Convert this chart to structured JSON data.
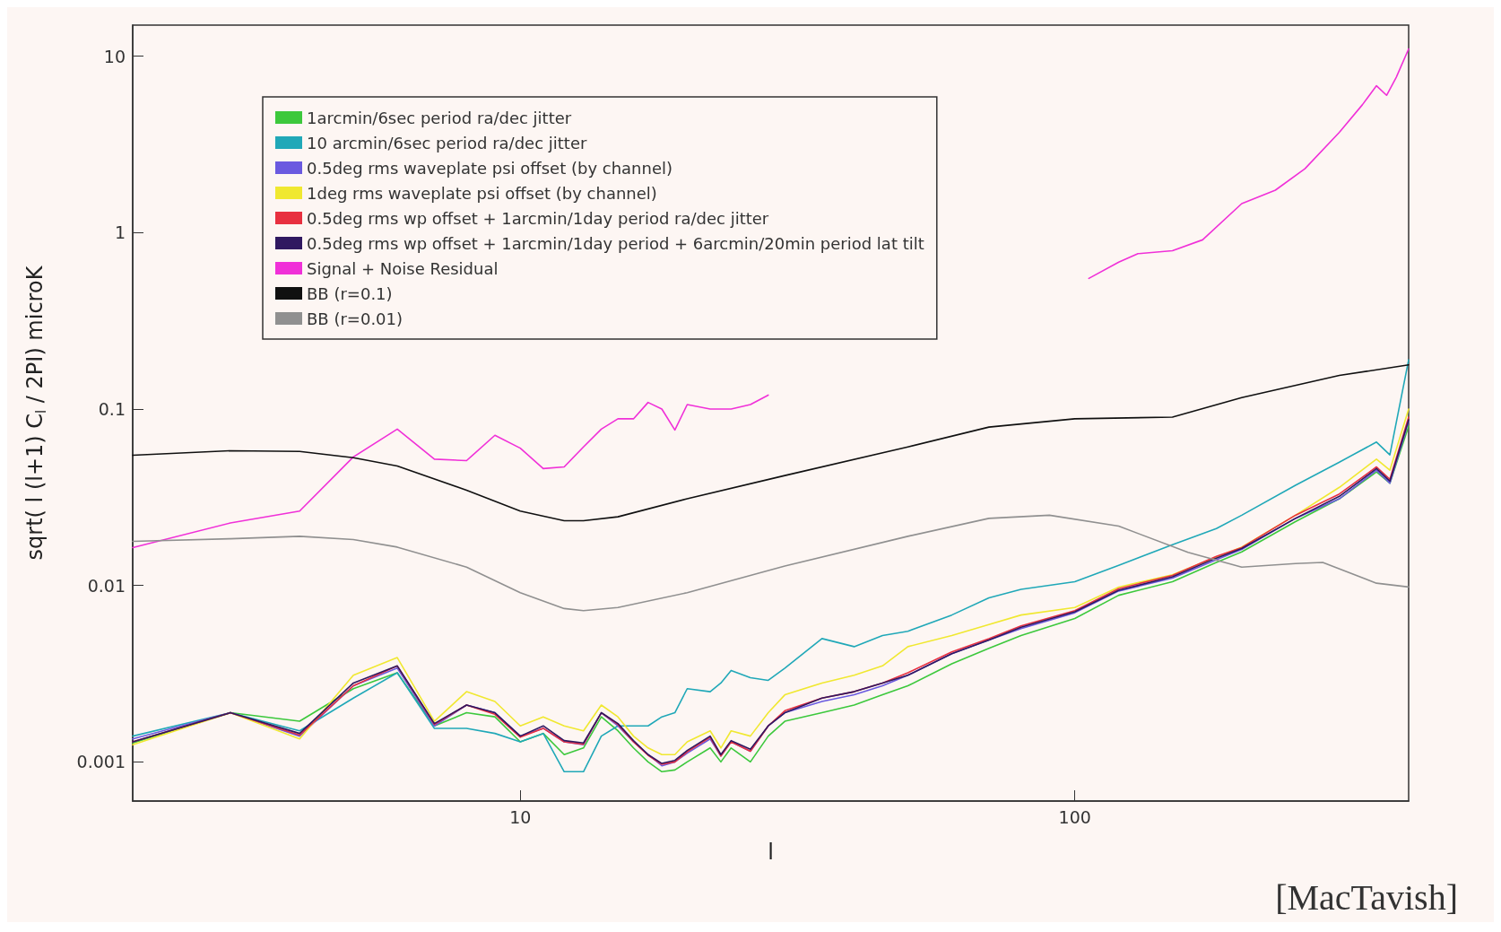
{
  "chart_data": {
    "type": "line",
    "xlabel": "l",
    "ylabel": "sqrt( l (l+1) C$_{l}$ / 2PI) microK",
    "annotations": [
      "[MacTavish]"
    ],
    "log": "xy",
    "xlim": [
      2,
      400
    ],
    "xticks": [
      10,
      100
    ],
    "ylim": [
      0.0006,
      15
    ],
    "yticks": [
      0.001,
      0.01,
      0.1,
      1,
      10
    ],
    "grid": false,
    "legend": "top left",
    "marker": "none",
    "line_style": "solid",
    "series": [
      {
        "name": "1arcmin/6sec period ra/dec jitter",
        "color": "#3cc83c",
        "x": [
          2,
          3,
          4,
          5,
          6,
          7,
          8,
          9,
          10,
          11,
          12,
          13,
          14,
          15,
          16,
          17,
          18,
          19,
          20,
          22,
          23,
          24,
          26,
          28,
          30,
          35,
          40,
          45,
          50,
          60,
          70,
          80,
          100,
          120,
          150,
          180,
          200,
          250,
          300,
          350,
          370,
          400
        ],
        "values": [
          0.00128,
          0.0019,
          0.0017,
          0.0026,
          0.0032,
          0.0016,
          0.0019,
          0.0018,
          0.0013,
          0.00145,
          0.0011,
          0.0012,
          0.0018,
          0.0015,
          0.0012,
          0.001,
          0.00088,
          0.0009,
          0.001,
          0.0012,
          0.001,
          0.0012,
          0.001,
          0.0014,
          0.0017,
          0.0019,
          0.0021,
          0.0024,
          0.0027,
          0.0036,
          0.0044,
          0.0052,
          0.0065,
          0.0088,
          0.0105,
          0.0135,
          0.0155,
          0.023,
          0.031,
          0.044,
          0.038,
          0.08
        ]
      },
      {
        "name": "10 arcmin/6sec period ra/dec jitter",
        "color": "#20a8b8",
        "x": [
          2,
          3,
          4,
          5,
          6,
          7,
          8,
          9,
          10,
          11,
          12,
          13,
          14,
          15,
          16,
          17,
          18,
          19,
          20,
          22,
          23,
          24,
          26,
          28,
          30,
          35,
          40,
          45,
          50,
          60,
          70,
          80,
          100,
          120,
          150,
          180,
          200,
          250,
          300,
          350,
          370,
          400
        ],
        "values": [
          0.0014,
          0.0019,
          0.0015,
          0.0023,
          0.0032,
          0.00155,
          0.00155,
          0.00145,
          0.0013,
          0.00145,
          0.00088,
          0.00088,
          0.0014,
          0.0016,
          0.0016,
          0.0016,
          0.0018,
          0.0019,
          0.0026,
          0.0025,
          0.0028,
          0.0033,
          0.003,
          0.0029,
          0.0034,
          0.005,
          0.0045,
          0.0052,
          0.0055,
          0.0068,
          0.0085,
          0.0095,
          0.0105,
          0.013,
          0.017,
          0.021,
          0.025,
          0.037,
          0.05,
          0.065,
          0.055,
          0.19
        ]
      },
      {
        "name": "0.5deg rms waveplate psi offset (by channel)",
        "color": "#6a5ae0",
        "x": [
          2,
          3,
          4,
          5,
          6,
          7,
          8,
          9,
          10,
          11,
          12,
          13,
          14,
          15,
          16,
          17,
          18,
          19,
          20,
          22,
          23,
          24,
          26,
          28,
          30,
          35,
          40,
          45,
          50,
          60,
          70,
          80,
          100,
          120,
          150,
          180,
          200,
          250,
          300,
          350,
          370,
          400
        ],
        "values": [
          0.00135,
          0.0019,
          0.0014,
          0.0027,
          0.0034,
          0.0016,
          0.0021,
          0.0019,
          0.0014,
          0.00155,
          0.0013,
          0.00125,
          0.0019,
          0.0016,
          0.0013,
          0.0011,
          0.00095,
          0.001,
          0.00112,
          0.00135,
          0.00108,
          0.0013,
          0.00115,
          0.0016,
          0.0019,
          0.0022,
          0.0024,
          0.0027,
          0.0031,
          0.0041,
          0.0049,
          0.0057,
          0.007,
          0.0093,
          0.011,
          0.014,
          0.016,
          0.024,
          0.031,
          0.045,
          0.038,
          0.085
        ]
      },
      {
        "name": "1deg rms waveplate psi offset (by channel)",
        "color": "#f0e830",
        "x": [
          2,
          3,
          4,
          5,
          6,
          7,
          8,
          9,
          10,
          11,
          12,
          13,
          14,
          15,
          16,
          17,
          18,
          19,
          20,
          22,
          23,
          24,
          26,
          28,
          30,
          35,
          40,
          45,
          50,
          60,
          70,
          80,
          100,
          120,
          150,
          180,
          200,
          250,
          300,
          350,
          370,
          400
        ],
        "values": [
          0.00125,
          0.0019,
          0.00135,
          0.0031,
          0.0039,
          0.0017,
          0.0025,
          0.0022,
          0.0016,
          0.0018,
          0.0016,
          0.0015,
          0.0021,
          0.0018,
          0.0014,
          0.0012,
          0.0011,
          0.0011,
          0.0013,
          0.0015,
          0.0012,
          0.0015,
          0.0014,
          0.0019,
          0.0024,
          0.0028,
          0.0031,
          0.0035,
          0.0045,
          0.0052,
          0.006,
          0.0068,
          0.0075,
          0.0098,
          0.0115,
          0.0145,
          0.0165,
          0.025,
          0.036,
          0.052,
          0.045,
          0.1
        ]
      },
      {
        "name": "0.5deg rms wp offset + 1arcmin/1day period ra/dec jitter",
        "color": "#e83040",
        "x": [
          2,
          3,
          4,
          5,
          6,
          7,
          8,
          9,
          10,
          11,
          12,
          13,
          14,
          15,
          16,
          17,
          18,
          19,
          20,
          22,
          23,
          24,
          26,
          28,
          30,
          35,
          40,
          45,
          50,
          60,
          70,
          80,
          100,
          120,
          150,
          180,
          200,
          250,
          300,
          350,
          370,
          400
        ],
        "values": [
          0.0013,
          0.0019,
          0.00142,
          0.0027,
          0.0035,
          0.00163,
          0.0021,
          0.00186,
          0.00138,
          0.00155,
          0.0013,
          0.00126,
          0.0019,
          0.00163,
          0.0013,
          0.00109,
          0.00097,
          0.001,
          0.00114,
          0.00138,
          0.00108,
          0.0013,
          0.00115,
          0.0016,
          0.00195,
          0.0023,
          0.0025,
          0.0028,
          0.0032,
          0.0042,
          0.005,
          0.0059,
          0.0072,
          0.0096,
          0.0114,
          0.0146,
          0.0164,
          0.025,
          0.033,
          0.047,
          0.04,
          0.09
        ]
      },
      {
        "name": "0.5deg rms wp offset + 1arcmin/1day period + 6arcmin/20min period lat tilt",
        "color": "#301860",
        "x": [
          2,
          3,
          4,
          5,
          6,
          7,
          8,
          9,
          10,
          11,
          12,
          13,
          14,
          15,
          16,
          17,
          18,
          19,
          20,
          22,
          23,
          24,
          26,
          28,
          30,
          35,
          40,
          45,
          50,
          60,
          70,
          80,
          100,
          120,
          150,
          180,
          200,
          250,
          300,
          350,
          370,
          400
        ],
        "values": [
          0.0013,
          0.0019,
          0.00145,
          0.0028,
          0.0035,
          0.00165,
          0.0021,
          0.0019,
          0.0014,
          0.0016,
          0.00132,
          0.00128,
          0.0019,
          0.00165,
          0.00132,
          0.0011,
          0.00098,
          0.00102,
          0.00116,
          0.0014,
          0.0011,
          0.00132,
          0.00118,
          0.0016,
          0.0019,
          0.0023,
          0.0025,
          0.0028,
          0.0031,
          0.0041,
          0.0049,
          0.0058,
          0.0071,
          0.0094,
          0.0112,
          0.0143,
          0.0162,
          0.024,
          0.032,
          0.046,
          0.039,
          0.087
        ]
      },
      {
        "name": "Signal + Noise Residual",
        "color": "#f030d8",
        "x": [
          2,
          3,
          4,
          5,
          6,
          7,
          8,
          9,
          10,
          11,
          12,
          13,
          14,
          15,
          16,
          17,
          18,
          19,
          20,
          22,
          24,
          26,
          28,
          60,
          106,
          120,
          130,
          150,
          170,
          200,
          230,
          260,
          300,
          330,
          350,
          365,
          380,
          400
        ],
        "values": [
          0.0164,
          0.0226,
          0.0264,
          0.0535,
          0.077,
          0.052,
          0.051,
          0.071,
          0.06,
          0.046,
          0.047,
          0.061,
          0.077,
          0.088,
          0.088,
          0.109,
          0.1,
          0.076,
          0.106,
          0.1,
          0.1,
          0.106,
          0.12,
          null,
          0.55,
          0.68,
          0.76,
          0.79,
          0.91,
          1.46,
          1.74,
          2.3,
          3.7,
          5.3,
          6.8,
          6.0,
          7.6,
          11
        ]
      },
      {
        "name": "BB (r=0.1)",
        "color": "#101010",
        "x": [
          2,
          3,
          4,
          5,
          6,
          8,
          10,
          12,
          13,
          15,
          20,
          30,
          50,
          70,
          100,
          150,
          200,
          300,
          400
        ],
        "values": [
          0.0547,
          0.058,
          0.0575,
          0.053,
          0.0475,
          0.0347,
          0.0264,
          0.0233,
          0.0233,
          0.0245,
          0.031,
          0.042,
          0.061,
          0.079,
          0.088,
          0.09,
          0.116,
          0.155,
          0.178
        ]
      },
      {
        "name": "BB (r=0.01)",
        "color": "#909090",
        "x": [
          2,
          3,
          4,
          5,
          6,
          8,
          10,
          12,
          13,
          15,
          20,
          30,
          50,
          70,
          90,
          120,
          160,
          200,
          250,
          280,
          350,
          400
        ],
        "values": [
          0.0178,
          0.0184,
          0.019,
          0.0182,
          0.0165,
          0.0127,
          0.0091,
          0.0074,
          0.0072,
          0.0075,
          0.0091,
          0.0129,
          0.019,
          0.024,
          0.025,
          0.0217,
          0.0154,
          0.0127,
          0.0133,
          0.0135,
          0.0103,
          0.0098
        ]
      }
    ]
  }
}
